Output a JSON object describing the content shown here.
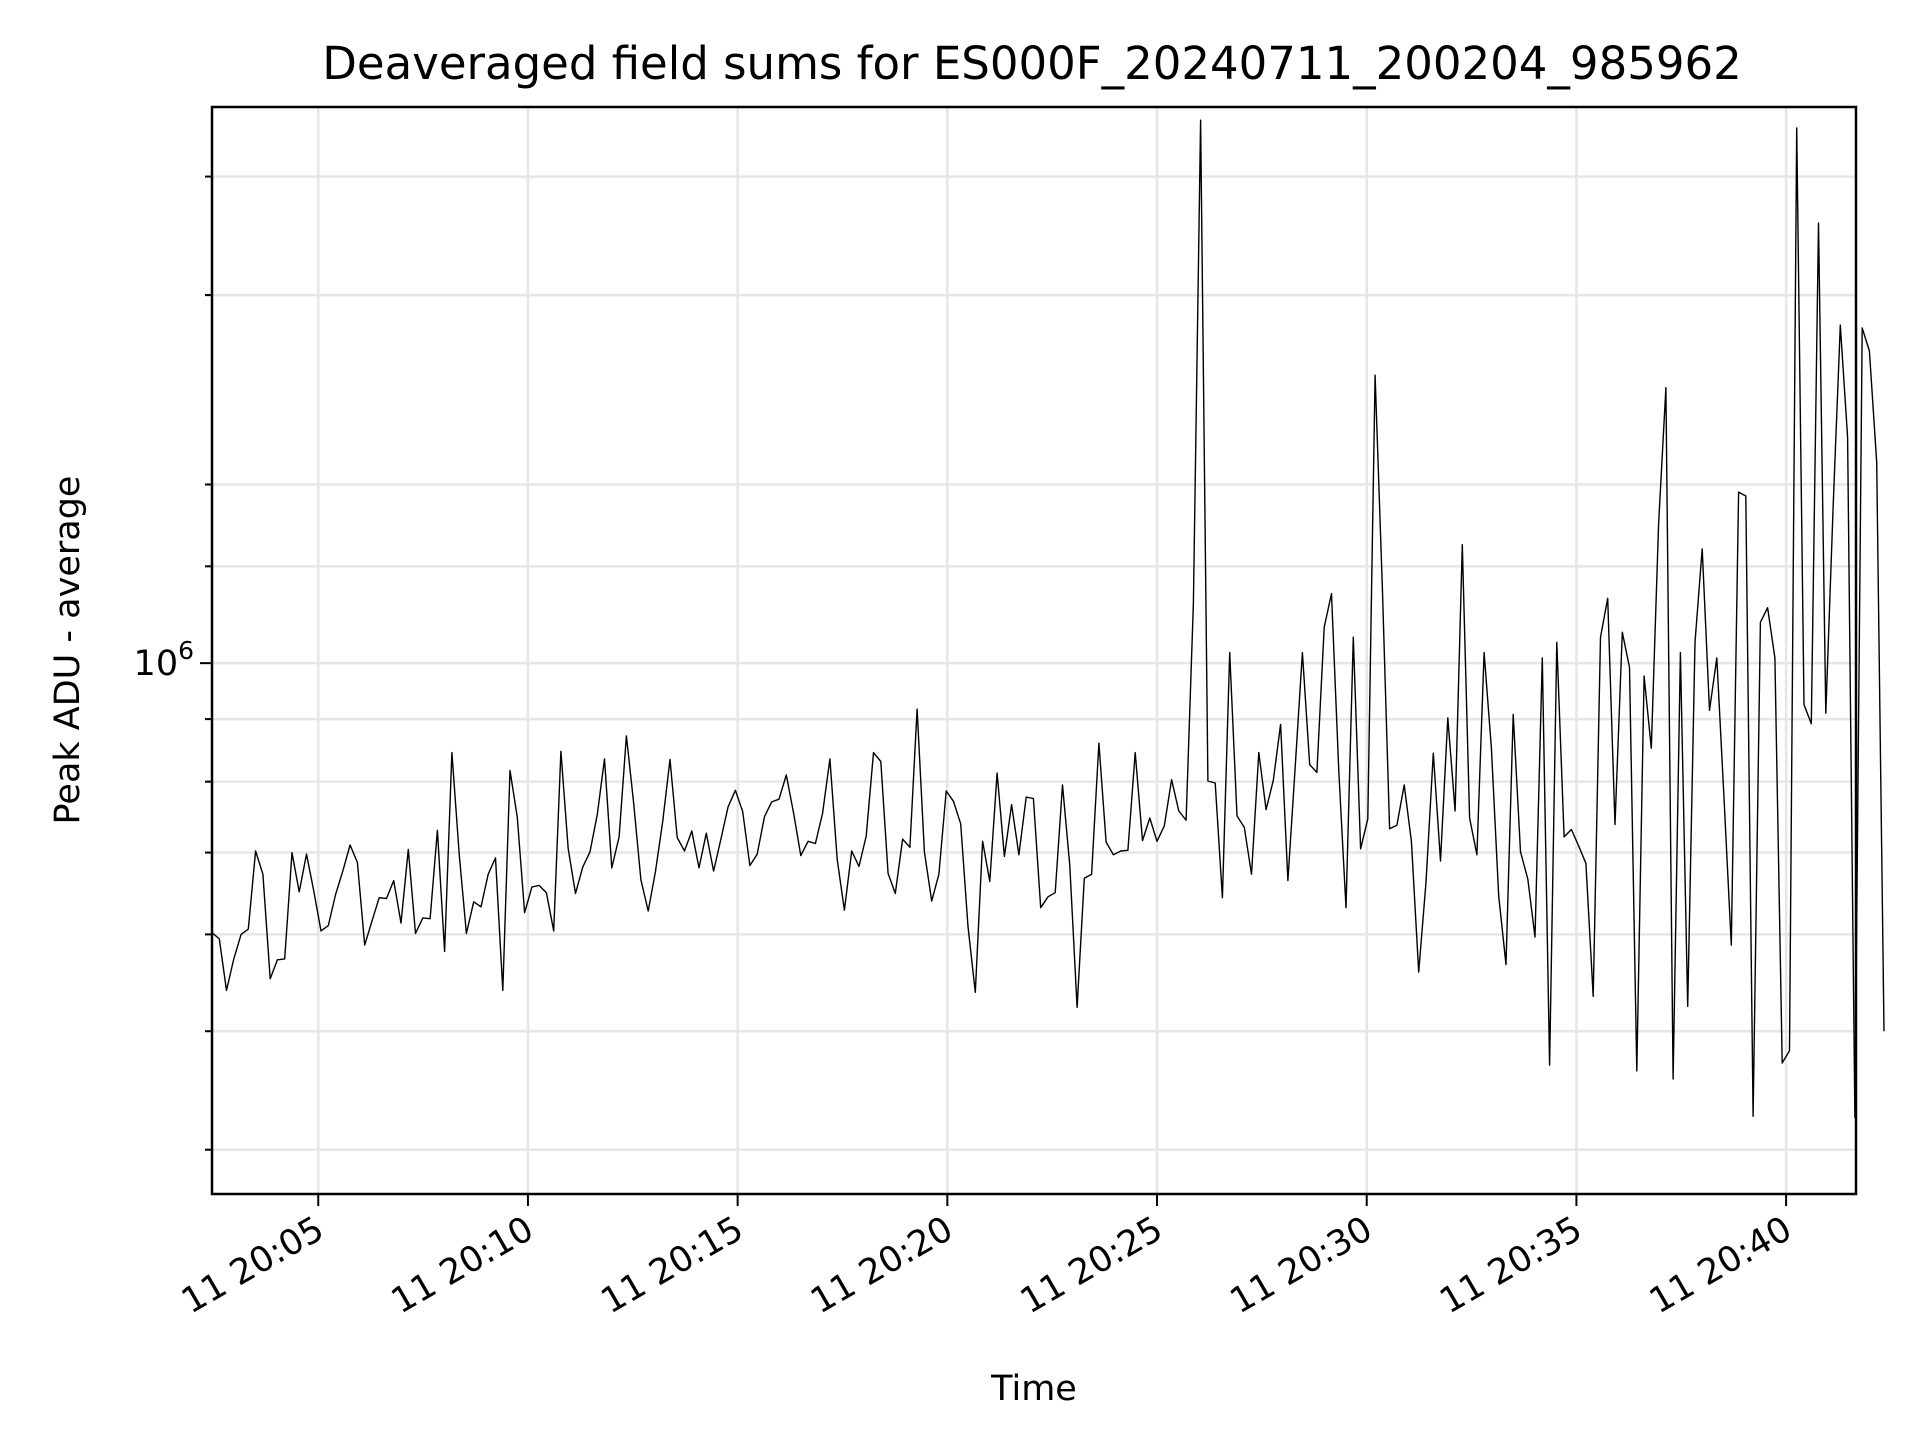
{
  "chart_data": {
    "type": "line",
    "title": "Deaveraged field sums for ES000F_20240711_200204_985962",
    "xlabel": "Time",
    "ylabel": "Peak ADU - average",
    "yscale": "log",
    "grid": true,
    "xlim": [
      "2024-07-11 20:02:28",
      "2024-07-11 20:41:40"
    ],
    "ylim": [
      368000,
      2850000
    ],
    "x_ticks": [
      {
        "value": "2024-07-11 20:05:00",
        "label": "11 20:05"
      },
      {
        "value": "2024-07-11 20:10:00",
        "label": "11 20:10"
      },
      {
        "value": "2024-07-11 20:15:00",
        "label": "11 20:15"
      },
      {
        "value": "2024-07-11 20:20:00",
        "label": "11 20:20"
      },
      {
        "value": "2024-07-11 20:25:00",
        "label": "11 20:25"
      },
      {
        "value": "2024-07-11 20:30:00",
        "label": "11 20:30"
      },
      {
        "value": "2024-07-11 20:35:00",
        "label": "11 20:35"
      },
      {
        "value": "2024-07-11 20:40:00",
        "label": "11 20:40"
      }
    ],
    "y_ticks": [
      {
        "value": 1000000,
        "base": "10",
        "exp": "6"
      }
    ],
    "y_minor_ticks": [
      400000,
      500000,
      600000,
      700000,
      800000,
      900000,
      2000000
    ],
    "y_upper_gridlines": [
      1200000,
      1400000,
      2000000,
      2500000
    ],
    "series": [
      {
        "color": "#000000",
        "start": "2024-07-11 20:02:28",
        "interval_seconds": 10.4,
        "values": [
          602000,
          595000,
          540000,
          573000,
          600000,
          606000,
          702000,
          672000,
          552000,
          572000,
          573000,
          700000,
          650000,
          698000,
          651000,
          604000,
          610000,
          647000,
          676000,
          710000,
          687000,
          588000,
          615000,
          643000,
          642000,
          664000,
          613000,
          704000,
          601000,
          619000,
          618000,
          730000,
          581000,
          845000,
          698000,
          601000,
          638000,
          632000,
          672000,
          693000,
          540000,
          817000,
          748000,
          625000,
          656000,
          658000,
          649000,
          604000,
          847000,
          705000,
          648000,
          681000,
          701000,
          752000,
          835000,
          680000,
          721000,
          872000,
          769000,
          665000,
          627000,
          675000,
          742000,
          834000,
          720000,
          702000,
          729000,
          680000,
          726000,
          676000,
          718000,
          763000,
          787000,
          756000,
          683000,
          698000,
          749000,
          770000,
          774000,
          810000,
          754000,
          696000,
          715000,
          712000,
          754000,
          835000,
          691000,
          628000,
          702000,
          682000,
          722000,
          845000,
          831000,
          673000,
          648000,
          718000,
          707000,
          917000,
          701000,
          639000,
          672000,
          786000,
          771000,
          739000,
          609000,
          538000,
          715000,
          663000,
          813000,
          695000,
          766000,
          697000,
          777000,
          775000,
          631000,
          644000,
          649000,
          795000,
          683000,
          523000,
          667000,
          672000,
          860000,
          714000,
          697000,
          702000,
          703000,
          845000,
          716000,
          747000,
          715000,
          736000,
          803000,
          757000,
          744000,
          1120000,
          2780000,
          801000,
          798000,
          643000,
          1020000,
          750000,
          734000,
          672000,
          845000,
          759000,
          802000,
          891000,
          664000,
          820000,
          1020000,
          826000,
          814000,
          1070000,
          1140000,
          816000,
          631000,
          1050000,
          705000,
          746000,
          1720000,
          1150000,
          732000,
          737000,
          795000,
          715000,
          559000,
          662000,
          844000,
          689000,
          902000,
          757000,
          1250000,
          747000,
          697000,
          1020000,
          852000,
          645000,
          567000,
          908000,
          701000,
          666000,
          597000,
          1010000,
          469000,
          1040000,
          721000,
          731000,
          709000,
          686000,
          534000,
          1050000,
          1130000,
          738000,
          1060000,
          992000,
          464000,
          976000,
          852000,
          1300000,
          1680000,
          457000,
          1020000,
          524000,
          1040000,
          1240000,
          915000,
          1010000,
          776000,
          588000,
          1380000,
          1370000,
          426000,
          1080000,
          1110000,
          1010000,
          471000,
          482000,
          2740000,
          925000,
          892000,
          2290000,
          910000,
          1340000,
          1890000,
          1530000,
          425000,
          1880000,
          1800000,
          1460000,
          500000
        ]
      }
    ]
  }
}
